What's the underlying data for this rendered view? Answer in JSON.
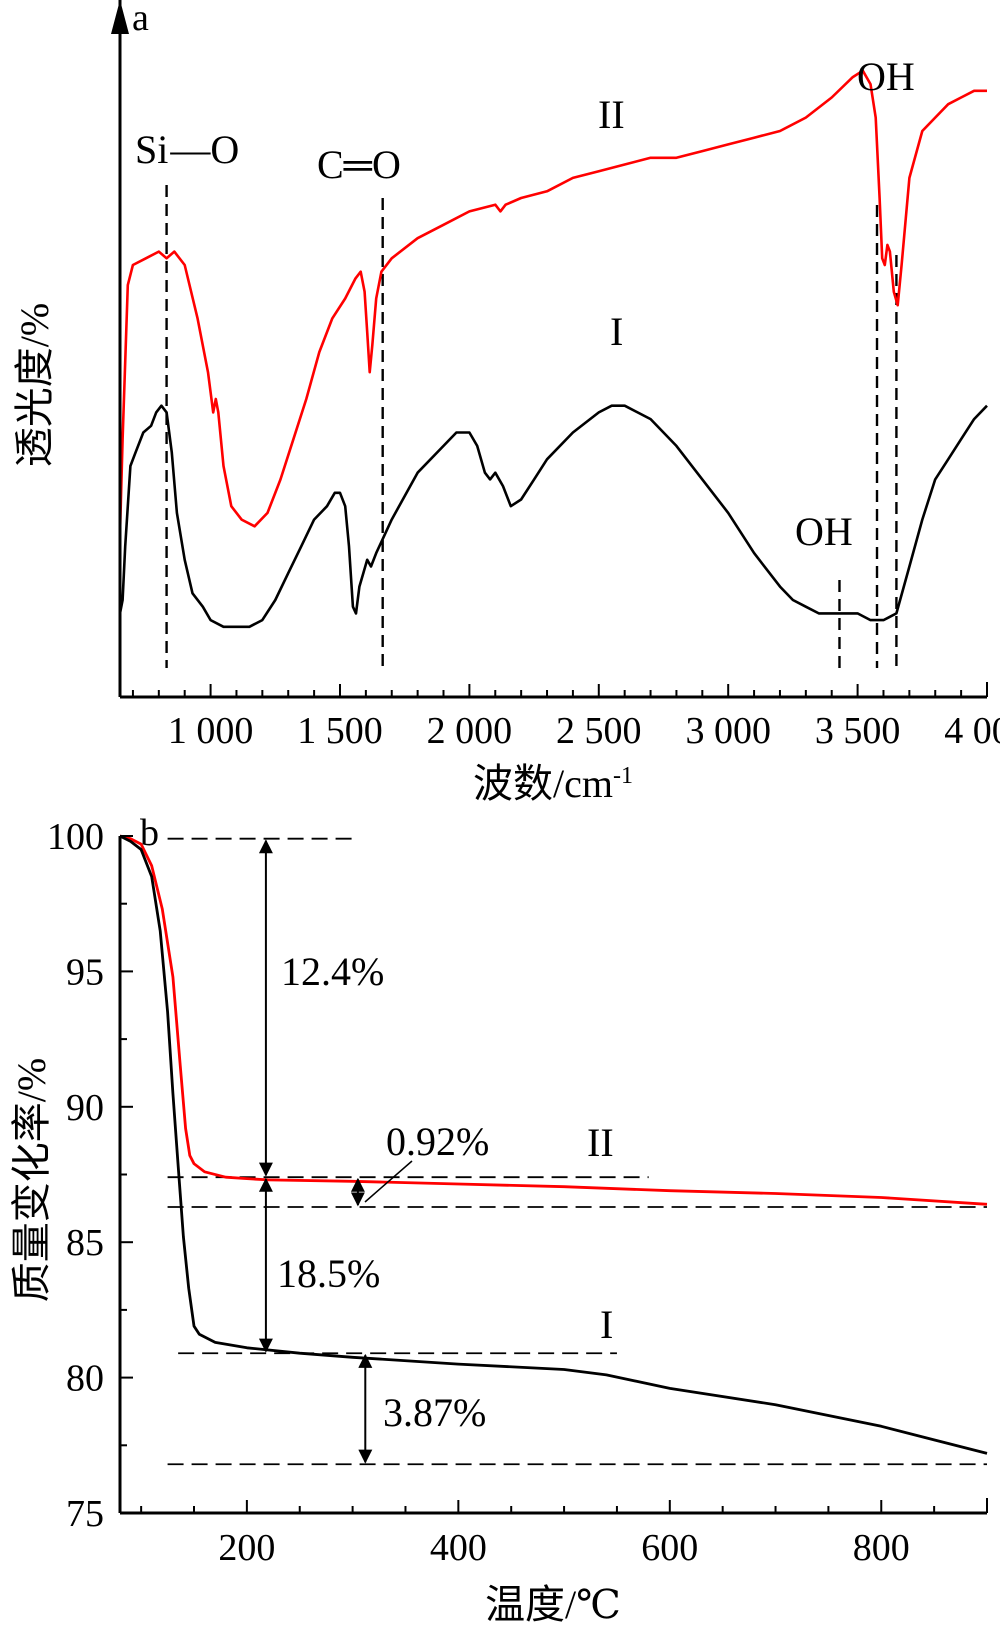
{
  "chart_data": [
    {
      "panel": "a",
      "type": "line",
      "xlabel": "波数/cm",
      "xlabel_superscript": "-1",
      "ylabel": "透光度/%",
      "xlim": [
        650,
        4000
      ],
      "x_ticks": [
        {
          "value": 1000,
          "label": "1 000"
        },
        {
          "value": 1500,
          "label": "1 500"
        },
        {
          "value": 2000,
          "label": "2 000"
        },
        {
          "value": 2500,
          "label": "2 500"
        },
        {
          "value": 3000,
          "label": "3 000"
        },
        {
          "value": 3500,
          "label": "3 500"
        },
        {
          "value": 4000,
          "label": "4 000"
        }
      ],
      "series": [
        {
          "name": "II",
          "color": "#ff0000",
          "points": [
            [
              650,
              10
            ],
            [
              660,
              24
            ],
            [
              680,
              47
            ],
            [
              700,
              50
            ],
            [
              750,
              51
            ],
            [
              800,
              52
            ],
            [
              830,
              51
            ],
            [
              860,
              52
            ],
            [
              900,
              50
            ],
            [
              950,
              42
            ],
            [
              990,
              34
            ],
            [
              1010,
              28
            ],
            [
              1020,
              30
            ],
            [
              1030,
              28
            ],
            [
              1050,
              20
            ],
            [
              1080,
              14
            ],
            [
              1120,
              12
            ],
            [
              1170,
              11
            ],
            [
              1220,
              13
            ],
            [
              1270,
              18
            ],
            [
              1320,
              24
            ],
            [
              1370,
              30
            ],
            [
              1420,
              37
            ],
            [
              1470,
              42
            ],
            [
              1520,
              45
            ],
            [
              1560,
              48
            ],
            [
              1580,
              49
            ],
            [
              1595,
              46
            ],
            [
              1605,
              40
            ],
            [
              1615,
              34
            ],
            [
              1625,
              38
            ],
            [
              1640,
              45
            ],
            [
              1660,
              49
            ],
            [
              1700,
              51
            ],
            [
              1800,
              54
            ],
            [
              1900,
              56
            ],
            [
              2000,
              58
            ],
            [
              2100,
              59
            ],
            [
              2120,
              58
            ],
            [
              2140,
              59
            ],
            [
              2200,
              60
            ],
            [
              2300,
              61
            ],
            [
              2400,
              63
            ],
            [
              2500,
              64
            ],
            [
              2600,
              65
            ],
            [
              2700,
              66
            ],
            [
              2800,
              66
            ],
            [
              2900,
              67
            ],
            [
              3000,
              68
            ],
            [
              3100,
              69
            ],
            [
              3200,
              70
            ],
            [
              3300,
              72
            ],
            [
              3400,
              75
            ],
            [
              3480,
              78
            ],
            [
              3520,
              79
            ],
            [
              3550,
              77
            ],
            [
              3570,
              72
            ],
            [
              3585,
              60
            ],
            [
              3595,
              51
            ],
            [
              3605,
              50
            ],
            [
              3615,
              53
            ],
            [
              3625,
              52
            ],
            [
              3640,
              46
            ],
            [
              3655,
              44
            ],
            [
              3670,
              50
            ],
            [
              3700,
              63
            ],
            [
              3750,
              70
            ],
            [
              3800,
              72
            ],
            [
              3850,
              74
            ],
            [
              3900,
              75
            ],
            [
              3950,
              76
            ],
            [
              4000,
              76
            ]
          ]
        },
        {
          "name": "I",
          "color": "#000000",
          "points": [
            [
              650,
              -2
            ],
            [
              660,
              0
            ],
            [
              670,
              8
            ],
            [
              690,
              20
            ],
            [
              710,
              22
            ],
            [
              740,
              25
            ],
            [
              770,
              26
            ],
            [
              790,
              28
            ],
            [
              810,
              29
            ],
            [
              830,
              28
            ],
            [
              850,
              22
            ],
            [
              870,
              13
            ],
            [
              900,
              6
            ],
            [
              930,
              1
            ],
            [
              970,
              -1
            ],
            [
              1000,
              -3
            ],
            [
              1050,
              -4
            ],
            [
              1100,
              -4
            ],
            [
              1150,
              -4
            ],
            [
              1200,
              -3
            ],
            [
              1250,
              0
            ],
            [
              1300,
              4
            ],
            [
              1350,
              8
            ],
            [
              1400,
              12
            ],
            [
              1450,
              14
            ],
            [
              1480,
              16
            ],
            [
              1500,
              16
            ],
            [
              1520,
              14
            ],
            [
              1535,
              8
            ],
            [
              1550,
              -1
            ],
            [
              1562,
              -2
            ],
            [
              1575,
              2
            ],
            [
              1590,
              4
            ],
            [
              1605,
              6
            ],
            [
              1620,
              5
            ],
            [
              1640,
              7
            ],
            [
              1700,
              12
            ],
            [
              1800,
              19
            ],
            [
              1900,
              23
            ],
            [
              1950,
              25
            ],
            [
              2000,
              25
            ],
            [
              2030,
              23
            ],
            [
              2060,
              19
            ],
            [
              2080,
              18
            ],
            [
              2100,
              19
            ],
            [
              2130,
              17
            ],
            [
              2160,
              14
            ],
            [
              2200,
              15
            ],
            [
              2250,
              18
            ],
            [
              2300,
              21
            ],
            [
              2400,
              25
            ],
            [
              2500,
              28
            ],
            [
              2550,
              29
            ],
            [
              2600,
              29
            ],
            [
              2650,
              28
            ],
            [
              2700,
              27
            ],
            [
              2800,
              23
            ],
            [
              2900,
              18
            ],
            [
              3000,
              13
            ],
            [
              3100,
              7
            ],
            [
              3200,
              2
            ],
            [
              3250,
              0
            ],
            [
              3300,
              -1
            ],
            [
              3350,
              -2
            ],
            [
              3400,
              -2
            ],
            [
              3450,
              -2
            ],
            [
              3500,
              -2
            ],
            [
              3550,
              -3
            ],
            [
              3600,
              -3
            ],
            [
              3650,
              -2
            ],
            [
              3700,
              5
            ],
            [
              3750,
              12
            ],
            [
              3800,
              18
            ],
            [
              3850,
              21
            ],
            [
              3900,
              24
            ],
            [
              3950,
              27
            ],
            [
              4000,
              29
            ]
          ]
        }
      ],
      "vertical_markers": [
        830,
        1665,
        3430,
        3575,
        3650
      ],
      "annotations": [
        {
          "text": "Si—O",
          "x": 830
        },
        {
          "text": "C═O",
          "x": 1665
        },
        {
          "text": "OH",
          "x": 3620,
          "series": "II"
        },
        {
          "text": "OH",
          "x": 3430,
          "series": "I"
        },
        {
          "text": "II",
          "series": "II"
        },
        {
          "text": "I",
          "series": "I"
        }
      ]
    },
    {
      "panel": "b",
      "type": "line",
      "xlabel": "温度/℃",
      "ylabel": "质量变化率/%",
      "xlim": [
        80,
        900
      ],
      "ylim": [
        75,
        100
      ],
      "x_ticks": [
        200,
        400,
        600,
        800
      ],
      "y_ticks": [
        75,
        80,
        85,
        90,
        95,
        100
      ],
      "series": [
        {
          "name": "II",
          "color": "#ff0000",
          "points": [
            [
              80,
              100
            ],
            [
              90,
              99.9
            ],
            [
              100,
              99.7
            ],
            [
              110,
              98.9
            ],
            [
              120,
              97.3
            ],
            [
              130,
              94.8
            ],
            [
              137,
              91.5
            ],
            [
              142,
              89.2
            ],
            [
              146,
              88.2
            ],
            [
              150,
              87.9
            ],
            [
              160,
              87.6
            ],
            [
              180,
              87.4
            ],
            [
              200,
              87.35
            ],
            [
              220,
              87.3
            ],
            [
              300,
              87.25
            ],
            [
              400,
              87.15
            ],
            [
              500,
              87.05
            ],
            [
              600,
              86.9
            ],
            [
              700,
              86.8
            ],
            [
              800,
              86.65
            ],
            [
              900,
              86.4
            ]
          ]
        },
        {
          "name": "I",
          "color": "#000000",
          "points": [
            [
              80,
              100
            ],
            [
              90,
              99.8
            ],
            [
              100,
              99.5
            ],
            [
              110,
              98.5
            ],
            [
              118,
              96.5
            ],
            [
              125,
              93.5
            ],
            [
              130,
              90.5
            ],
            [
              135,
              87.8
            ],
            [
              140,
              85.2
            ],
            [
              145,
              83.3
            ],
            [
              150,
              81.9
            ],
            [
              155,
              81.6
            ],
            [
              170,
              81.3
            ],
            [
              200,
              81.1
            ],
            [
              250,
              80.9
            ],
            [
              300,
              80.75
            ],
            [
              400,
              80.5
            ],
            [
              500,
              80.3
            ],
            [
              540,
              80.1
            ],
            [
              600,
              79.6
            ],
            [
              700,
              79.0
            ],
            [
              800,
              78.2
            ],
            [
              850,
              77.7
            ],
            [
              900,
              77.2
            ]
          ]
        }
      ],
      "reference_lines": [
        {
          "y": 99.9,
          "x_from": 125,
          "x_to": 305
        },
        {
          "y": 87.4,
          "x_from": 125,
          "x_to": 580
        },
        {
          "y": 86.3,
          "x_from": 125,
          "x_to": 900
        },
        {
          "y": 80.9,
          "x_from": 135,
          "x_to": 550
        },
        {
          "y": 76.8,
          "x_from": 125,
          "x_to": 900
        }
      ],
      "arrows": [
        {
          "x": 218,
          "y_from": 99.9,
          "y_to": 87.4
        },
        {
          "x": 218,
          "y_from": 87.4,
          "y_to": 80.9
        },
        {
          "x": 305,
          "y_from": 87.4,
          "y_to": 86.3
        },
        {
          "x": 312,
          "y_from": 80.9,
          "y_to": 76.8
        }
      ],
      "annotations": [
        {
          "text": "12.4%"
        },
        {
          "text": "18.5%"
        },
        {
          "text": "0.92%"
        },
        {
          "text": "3.87%"
        },
        {
          "text": "II",
          "series": "II"
        },
        {
          "text": "I",
          "series": "I"
        }
      ]
    }
  ]
}
